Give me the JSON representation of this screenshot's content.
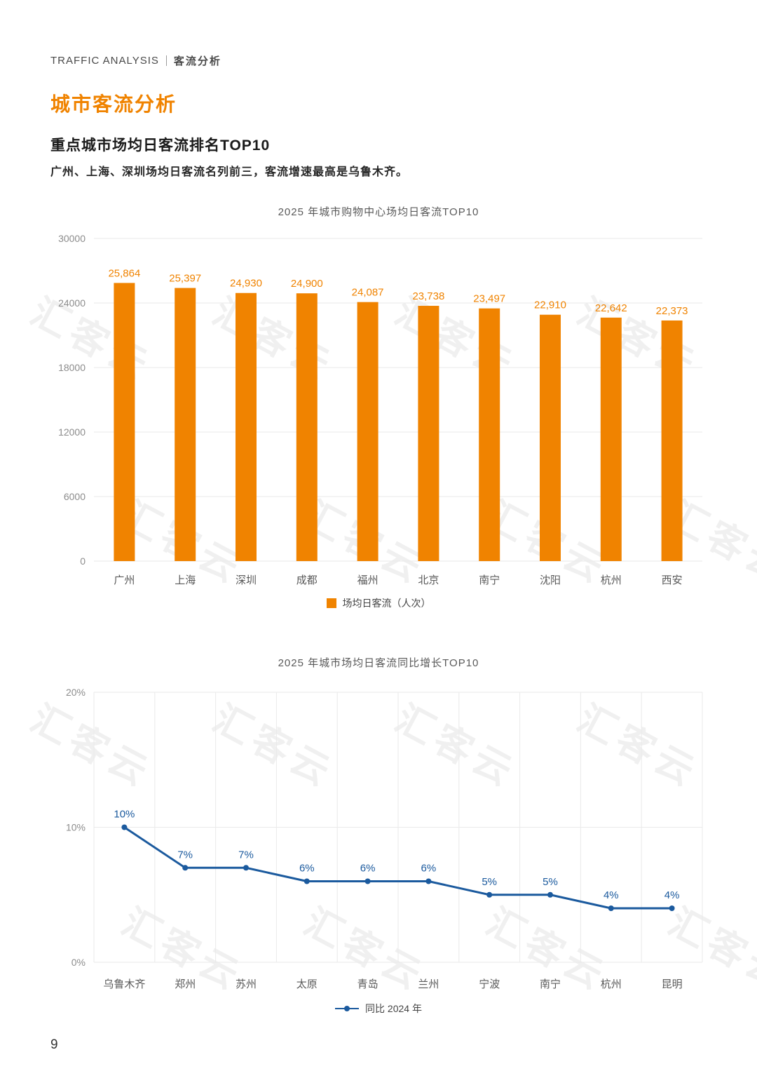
{
  "page": {
    "header_left": "TRAFFIC ANALYSIS",
    "header_right": "客流分析",
    "title": "城市客流分析",
    "subtitle": "重点城市场均日客流排名TOP10",
    "description": "广州、上海、深圳场均日客流名列前三，客流增速最高是乌鲁木齐。",
    "watermark": "汇客云",
    "page_number": "9"
  },
  "colors": {
    "orange": "#F08300",
    "blue": "#1B5A9E",
    "grid": "#EAEAEA",
    "axis_text": "#8C8C8C",
    "category_text": "#595959"
  },
  "chart_data": [
    {
      "type": "bar",
      "title": "2025 年城市购物中心场均日客流TOP10",
      "categories": [
        "广州",
        "上海",
        "深圳",
        "成都",
        "福州",
        "北京",
        "南宁",
        "沈阳",
        "杭州",
        "西安"
      ],
      "values": [
        25864,
        25397,
        24930,
        24900,
        24087,
        23738,
        23497,
        22910,
        22642,
        22373
      ],
      "value_labels": [
        "25,864",
        "25,397",
        "24,930",
        "24,900",
        "24,087",
        "23,738",
        "23,497",
        "22,910",
        "22,642",
        "22,373"
      ],
      "ylim": [
        0,
        30000
      ],
      "yticks": [
        0,
        6000,
        12000,
        18000,
        24000,
        30000
      ],
      "ytick_labels": [
        "0",
        "6000",
        "12000",
        "18000",
        "24000",
        "30000"
      ],
      "legend": "场均日客流（人次）",
      "bar_color": "#F08300",
      "grid": "horizontal"
    },
    {
      "type": "line",
      "title": "2025 年城市场均日客流同比增长TOP10",
      "categories": [
        "乌鲁木齐",
        "郑州",
        "苏州",
        "太原",
        "青岛",
        "兰州",
        "宁波",
        "南宁",
        "杭州",
        "昆明"
      ],
      "values": [
        10,
        7,
        7,
        6,
        6,
        6,
        5,
        5,
        4,
        4
      ],
      "value_labels": [
        "10%",
        "7%",
        "7%",
        "6%",
        "6%",
        "6%",
        "5%",
        "5%",
        "4%",
        "4%"
      ],
      "ylim": [
        0,
        20
      ],
      "yticks": [
        0,
        10,
        20
      ],
      "ytick_labels": [
        "0%",
        "10%",
        "20%"
      ],
      "legend": "同比 2024 年",
      "line_color": "#1B5A9E",
      "grid": "horizontal-and-vertical"
    }
  ]
}
